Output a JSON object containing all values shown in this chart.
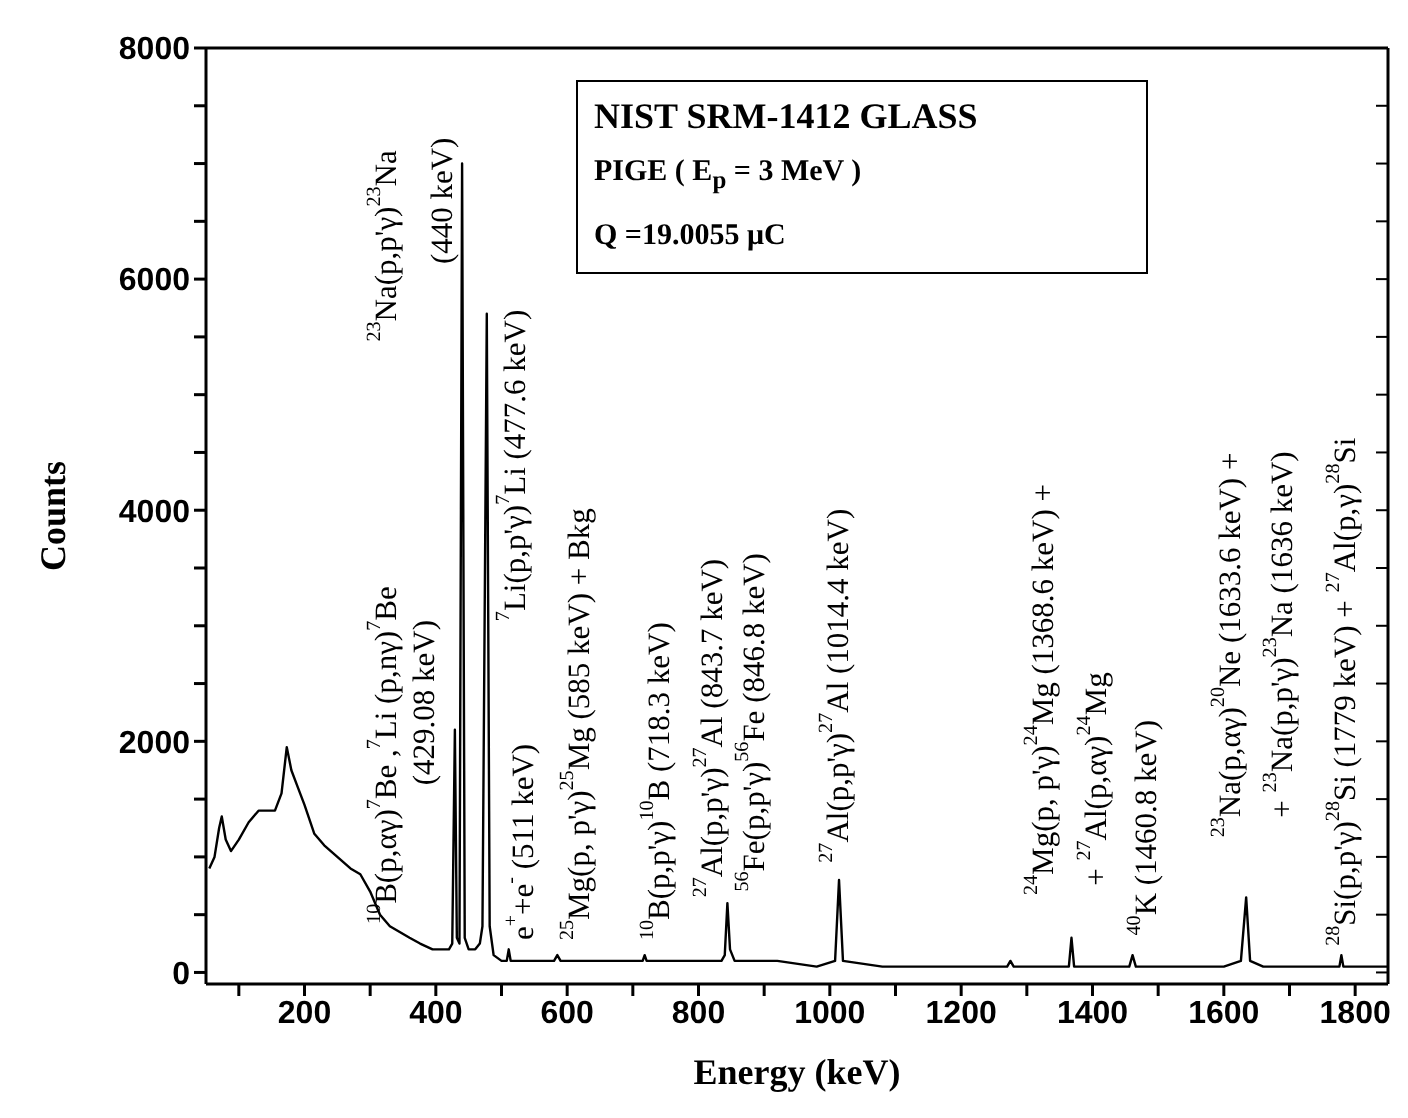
{
  "chart_data": {
    "type": "line",
    "xlabel": "Energy (keV)",
    "ylabel": "Counts",
    "xlim": [
      50,
      1850
    ],
    "ylim": [
      -100,
      8000
    ],
    "xticks": [
      {
        "value": 100,
        "label": null
      },
      200,
      {
        "value": 300,
        "label": null
      },
      400,
      {
        "value": 500,
        "label": null
      },
      600,
      {
        "value": 700,
        "label": null
      },
      800,
      {
        "value": 900,
        "label": null
      },
      1000,
      {
        "value": 1100,
        "label": null
      },
      1200,
      {
        "value": 1300,
        "label": null
      },
      1400,
      {
        "value": 1500,
        "label": null
      },
      1600,
      {
        "value": 1700,
        "label": null
      },
      1800
    ],
    "yticks": [
      0,
      {
        "value": 500,
        "label": null
      },
      {
        "value": 1000,
        "label": null
      },
      {
        "value": 1500,
        "label": null
      },
      2000,
      {
        "value": 2500,
        "label": null
      },
      {
        "value": 3000,
        "label": null
      },
      {
        "value": 3500,
        "label": null
      },
      4000,
      {
        "value": 4500,
        "label": null
      },
      {
        "value": 5000,
        "label": null
      },
      {
        "value": 5500,
        "label": null
      },
      6000,
      {
        "value": 6500,
        "label": null
      },
      {
        "value": 7000,
        "label": null
      },
      {
        "value": 7500,
        "label": null
      },
      8000
    ],
    "marker": "none",
    "line_style": "solid",
    "series": [
      {
        "color": "#000000",
        "x": [
          55,
          63,
          70,
          74,
          80,
          88,
          100,
          115,
          130,
          145,
          155,
          165,
          173,
          180,
          190,
          200,
          215,
          230,
          250,
          270,
          285,
          300,
          315,
          330,
          345,
          360,
          376,
          395,
          410,
          420,
          425,
          429,
          432,
          436,
          440,
          444,
          450,
          460,
          467,
          471,
          477.6,
          482,
          488,
          500,
          508,
          511,
          514,
          540,
          580,
          585,
          590,
          640,
          700,
          715,
          718,
          721,
          780,
          835,
          840,
          844,
          848,
          855,
          920,
          980,
          1008,
          1014,
          1020,
          1080,
          1150,
          1270,
          1275,
          1280,
          1340,
          1364,
          1368,
          1372,
          1420,
          1456,
          1461,
          1466,
          1580,
          1600,
          1626,
          1634,
          1640,
          1660,
          1740,
          1776,
          1779,
          1782,
          1850
        ],
        "values": [
          900,
          1000,
          1250,
          1350,
          1150,
          1050,
          1150,
          1300,
          1400,
          1400,
          1400,
          1550,
          1950,
          1750,
          1600,
          1450,
          1200,
          1100,
          1000,
          900,
          850,
          700,
          500,
          400,
          350,
          300,
          250,
          200,
          200,
          200,
          250,
          2100,
          300,
          250,
          7000,
          300,
          200,
          200,
          250,
          400,
          5700,
          400,
          150,
          100,
          100,
          200,
          100,
          100,
          100,
          150,
          100,
          100,
          100,
          100,
          150,
          100,
          100,
          100,
          150,
          600,
          200,
          100,
          100,
          50,
          100,
          800,
          100,
          50,
          50,
          50,
          100,
          50,
          50,
          50,
          300,
          50,
          50,
          50,
          150,
          50,
          50,
          50,
          100,
          650,
          100,
          50,
          50,
          50,
          150,
          50,
          50
        ]
      }
    ],
    "annotations": [
      "NIST SRM-1412 GLASS",
      "PIGE ( E$_{p}$ = 3 MeV )",
      "Q =19.0055 μC",
      "$^{10}$B(p,αγ)$^{7}$Be ,$^{7}$Li (p,nγ)$^{7}$Be",
      "$^{23}$Na(p,p'γ)$^{23}$Na",
      "(429.08 keV)",
      "(440 keV)",
      "$^{7}$Li(p,p'γ)$^{7}$Li  (477.6 keV)",
      "e$^{+}$+e$^{-}$  (511 keV)",
      "$^{25}$Mg(p, p'γ)$^{25}$Mg  (585 keV) + Bkg",
      "$^{10}$B(p,p'γ)$^{10}$B  (718.3 keV)",
      "$^{27}$Al(p,p'γ)$^{27}$Al  (843.7 keV)",
      "$^{56}$Fe(p,p'γ)$^{56}$Fe  (846.8 keV)",
      "$^{27}$Al(p,p'γ)$^{27}$Al  (1014.4 keV)",
      "$^{24}$Mg(p, p'γ)$^{24}$Mg  (1368.6 keV) +",
      "+ $^{27}$Al(p,αγ)$^{24}$Mg",
      "$^{40}$K  (1460.8 keV)",
      "$^{23}$Na(p,αγ)$^{20}$Ne (1633.6 keV) +",
      "+ $^{23}$Na(p,p'γ)$^{23}$Na (1636 keV)",
      "$^{28}$Si(p,p'γ)$^{28}$Si (1779 keV) + $^{27}$Al(p,γ)$^{28}$Si"
    ]
  }
}
